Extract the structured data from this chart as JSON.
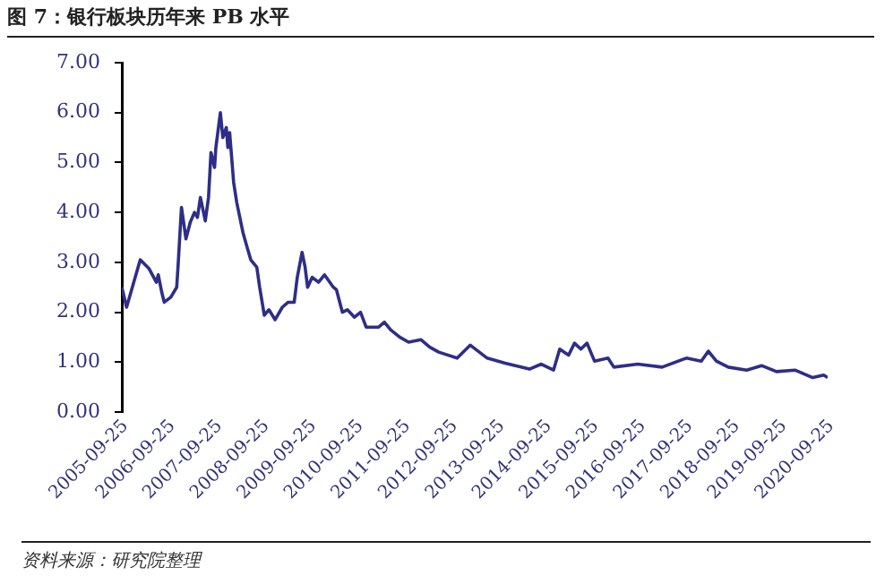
{
  "chart_data": {
    "type": "line",
    "title": "图 7：银行板块历年来 PB 水平",
    "x": [
      "2005-09-25",
      "2005-11-01",
      "2006-02-15",
      "2006-04-25",
      "2006-06-20",
      "2006-07-05",
      "2006-08-01",
      "2006-08-20",
      "2006-10-10",
      "2006-11-25",
      "2006-12-05",
      "2007-01-01",
      "2007-02-05",
      "2007-03-10",
      "2007-04-12",
      "2007-05-05",
      "2007-05-28",
      "2007-07-05",
      "2007-07-30",
      "2007-08-18",
      "2007-09-15",
      "2007-09-25",
      "2007-10-30",
      "2007-11-18",
      "2007-12-15",
      "2007-12-27",
      "2008-01-10",
      "2008-02-10",
      "2008-03-05",
      "2008-04-22",
      "2008-05-25",
      "2008-06-22",
      "2008-08-08",
      "2008-08-30",
      "2008-10-05",
      "2008-11-10",
      "2008-12-28",
      "2009-02-22",
      "2009-04-08",
      "2009-05-25",
      "2009-06-18",
      "2009-07-25",
      "2009-08-18",
      "2009-09-06",
      "2009-10-12",
      "2009-11-30",
      "2010-01-15",
      "2010-03-25",
      "2010-04-18",
      "2010-06-03",
      "2010-07-12",
      "2010-09-05",
      "2010-10-22",
      "2010-12-05",
      "2011-03-10",
      "2011-04-25",
      "2011-06-12",
      "2011-08-22",
      "2011-10-30",
      "2012-02-02",
      "2012-04-12",
      "2012-06-20",
      "2012-11-10",
      "2013-02-20",
      "2013-07-01",
      "2013-11-18",
      "2014-05-25",
      "2014-08-25",
      "2014-11-28",
      "2015-01-15",
      "2015-03-25",
      "2015-05-10",
      "2015-06-28",
      "2015-08-15",
      "2015-10-12",
      "2016-01-25",
      "2016-03-10",
      "2016-09-12",
      "2017-03-20",
      "2017-09-25",
      "2018-01-18",
      "2018-03-14",
      "2018-05-15",
      "2018-08-15",
      "2019-01-05",
      "2019-05-01",
      "2019-08-25",
      "2020-01-15",
      "2020-06-01",
      "2020-08-25",
      "2020-09-25"
    ],
    "series": [
      {
        "color": "#2e2e88",
        "values": [
          2.5,
          2.1,
          3.05,
          2.87,
          2.6,
          2.75,
          2.4,
          2.2,
          2.3,
          2.5,
          2.9,
          4.1,
          3.47,
          3.8,
          4.0,
          3.9,
          4.3,
          3.83,
          4.3,
          5.2,
          4.9,
          5.3,
          6.0,
          5.5,
          5.7,
          5.3,
          5.6,
          4.6,
          4.2,
          3.6,
          3.3,
          3.05,
          2.9,
          2.5,
          1.94,
          2.05,
          1.85,
          2.1,
          2.2,
          2.2,
          2.7,
          3.2,
          2.9,
          2.5,
          2.7,
          2.6,
          2.75,
          2.5,
          2.45,
          2.0,
          2.05,
          1.9,
          2.0,
          1.7,
          1.7,
          1.8,
          1.65,
          1.5,
          1.4,
          1.45,
          1.3,
          1.2,
          1.08,
          1.34,
          1.08,
          0.98,
          0.86,
          0.96,
          0.84,
          1.26,
          1.14,
          1.38,
          1.26,
          1.38,
          1.02,
          1.08,
          0.9,
          0.96,
          0.9,
          1.08,
          1.02,
          1.22,
          1.02,
          0.9,
          0.84,
          0.93,
          0.81,
          0.84,
          0.69,
          0.74,
          0.69
        ]
      }
    ],
    "xlim": [
      "2005-09-25",
      "2020-09-25"
    ],
    "xticks": [
      "2005-09-25",
      "2006-09-25",
      "2007-09-25",
      "2008-09-25",
      "2009-09-25",
      "2010-09-25",
      "2011-09-25",
      "2012-09-25",
      "2013-09-25",
      "2014-09-25",
      "2015-09-25",
      "2016-09-25",
      "2017-09-25",
      "2018-09-25",
      "2019-09-25",
      "2020-09-25"
    ],
    "ylim": [
      0,
      7
    ],
    "yticks": [
      {
        "value": 0,
        "label": "0.00"
      },
      {
        "value": 1,
        "label": "1.00"
      },
      {
        "value": 2,
        "label": "2.00"
      },
      {
        "value": 3,
        "label": "3.00"
      },
      {
        "value": 4,
        "label": "4.00"
      },
      {
        "value": 5,
        "label": "5.00"
      },
      {
        "value": 6,
        "label": "6.00"
      },
      {
        "value": 7,
        "label": "7.00"
      }
    ],
    "grid": false,
    "legend": false,
    "marker": "none",
    "line_style": "solid",
    "annotations": [
      "资料来源：研究院整理"
    ]
  }
}
